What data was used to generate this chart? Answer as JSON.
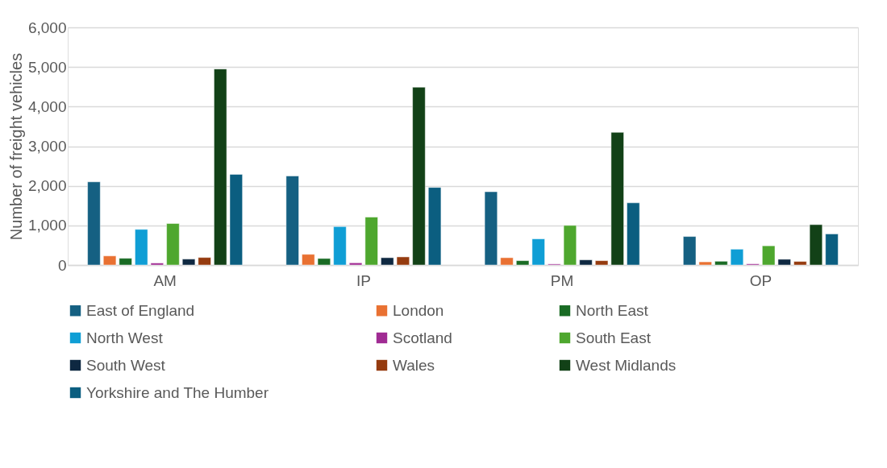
{
  "chart_data": {
    "type": "bar",
    "ylabel": "Number of freight vehicles",
    "categories": [
      "AM",
      "IP",
      "PM",
      "OP"
    ],
    "series": [
      {
        "name": "East of England",
        "color": "#156082",
        "values": [
          2100,
          2250,
          1850,
          720
        ]
      },
      {
        "name": "London",
        "color": "#e97132",
        "values": [
          230,
          270,
          185,
          80
        ]
      },
      {
        "name": "North East",
        "color": "#196b24",
        "values": [
          170,
          165,
          110,
          95
        ]
      },
      {
        "name": "North West",
        "color": "#0f9ed5",
        "values": [
          900,
          970,
          660,
          400
        ]
      },
      {
        "name": "Scotland",
        "color": "#a02b93",
        "values": [
          50,
          55,
          25,
          30
        ]
      },
      {
        "name": "South East",
        "color": "#4ea72e",
        "values": [
          1050,
          1210,
          1000,
          485
        ]
      },
      {
        "name": "South West",
        "color": "#0e2841",
        "values": [
          150,
          185,
          130,
          145
        ]
      },
      {
        "name": "Wales",
        "color": "#953b0f",
        "values": [
          190,
          205,
          110,
          90
        ]
      },
      {
        "name": "West Midlands",
        "color": "#124117",
        "values": [
          4950,
          4490,
          3350,
          1020
        ]
      },
      {
        "name": "Yorkshire and The Humber",
        "color": "#0b5e80",
        "values": [
          2290,
          1960,
          1570,
          785
        ]
      }
    ],
    "ylim": [
      0,
      6000
    ],
    "yticks": [
      {
        "value": 0,
        "label": "0"
      },
      {
        "value": 1000,
        "label": "1,000"
      },
      {
        "value": 2000,
        "label": "2,000"
      },
      {
        "value": 3000,
        "label": "3,000"
      },
      {
        "value": 4000,
        "label": "4,000"
      },
      {
        "value": 5000,
        "label": "5,000"
      },
      {
        "value": 6000,
        "label": "6,000"
      }
    ],
    "grid": "y",
    "legend": "bottom"
  }
}
